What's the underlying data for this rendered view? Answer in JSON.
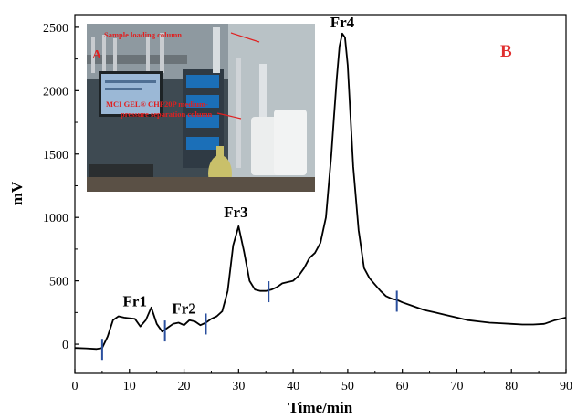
{
  "colors": {
    "trace": "#000000",
    "marker": "#2a4f9e",
    "panel_letter": "#e03030",
    "photo_caption": "#e02020"
  },
  "photo": {
    "description_icon": "lab-photo-icon",
    "captions": [
      "Sample loading column",
      "MCI GEL® CHP20P medium-",
      "pressure separation column"
    ],
    "letter": "A"
  },
  "chart_data": {
    "type": "line",
    "title": "",
    "xlabel": "Time/min",
    "ylabel": "mV",
    "xlim": [
      0,
      90
    ],
    "ylim": [
      -230,
      2600
    ],
    "x_ticks": [
      0,
      10,
      20,
      30,
      40,
      50,
      60,
      70,
      80,
      90
    ],
    "y_ticks": [
      0,
      500,
      1000,
      1500,
      2000,
      2500
    ],
    "grid": false,
    "legend": "none",
    "panel_label": "B",
    "series": [
      {
        "x": [
          0,
          2,
          4,
          5,
          6,
          7,
          8,
          9,
          10,
          11,
          12,
          13,
          14,
          15,
          16,
          17,
          18,
          19,
          20,
          21,
          22,
          23,
          24,
          25,
          26,
          27,
          28,
          29,
          30,
          31,
          32,
          33,
          34,
          35,
          36,
          37,
          38,
          39,
          40,
          41,
          42,
          43,
          44,
          45,
          46,
          47,
          47.5,
          48,
          48.5,
          49,
          49.5,
          50,
          50.5,
          51,
          52,
          53,
          54,
          55,
          56,
          57,
          58,
          59,
          60,
          62,
          64,
          66,
          68,
          70,
          72,
          74,
          76,
          78,
          80,
          82,
          84,
          86,
          88,
          90
        ],
        "y": [
          -30,
          -33,
          -38,
          -30,
          60,
          190,
          220,
          210,
          205,
          200,
          140,
          190,
          290,
          160,
          100,
          130,
          160,
          170,
          150,
          190,
          180,
          150,
          170,
          200,
          220,
          260,
          420,
          780,
          930,
          730,
          500,
          430,
          420,
          420,
          430,
          450,
          480,
          490,
          500,
          540,
          600,
          680,
          720,
          800,
          1000,
          1500,
          1800,
          2100,
          2350,
          2450,
          2420,
          2200,
          1800,
          1400,
          900,
          600,
          520,
          470,
          420,
          380,
          360,
          350,
          330,
          300,
          270,
          250,
          230,
          210,
          190,
          180,
          170,
          165,
          160,
          155,
          155,
          160,
          190,
          210
        ]
      }
    ],
    "annotations": [
      {
        "text": "Fr1",
        "x": 11,
        "y": 300
      },
      {
        "text": "Fr2",
        "x": 20,
        "y": 240
      },
      {
        "text": "Fr3",
        "x": 29.5,
        "y": 1000
      },
      {
        "text": "Fr4",
        "x": 49,
        "y": 2500
      }
    ],
    "fraction_cuts": [
      5,
      16.5,
      24,
      35.5,
      59
    ]
  }
}
